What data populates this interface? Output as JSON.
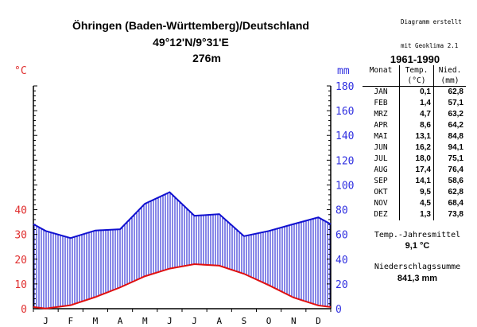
{
  "credit": {
    "line1": "Diagramm erstellt",
    "line2": "mit Geoklima 2.1"
  },
  "header": {
    "title": "Öhringen (Baden-Württemberg)/Deutschland",
    "coords": "49°12'N/9°31'E",
    "altitude": "276m"
  },
  "units": {
    "left": "°C",
    "right": "mm"
  },
  "table": {
    "period": "1961-1990",
    "head_month": "Monat",
    "head_temp": "Temp.",
    "head_temp_unit": "(°C)",
    "head_prec": "Nied.",
    "head_prec_unit": "(mm)",
    "rows": [
      {
        "month": "JAN",
        "temp": "0,1",
        "prec": "62,8"
      },
      {
        "month": "FEB",
        "temp": "1,4",
        "prec": "57,1"
      },
      {
        "month": "MRZ",
        "temp": "4,7",
        "prec": "63,2"
      },
      {
        "month": "APR",
        "temp": "8,6",
        "prec": "64,2"
      },
      {
        "month": "MAI",
        "temp": "13,1",
        "prec": "84,8"
      },
      {
        "month": "JUN",
        "temp": "16,2",
        "prec": "94,1"
      },
      {
        "month": "JUL",
        "temp": "18,0",
        "prec": "75,1"
      },
      {
        "month": "AUG",
        "temp": "17,4",
        "prec": "76,4"
      },
      {
        "month": "SEP",
        "temp": "14,1",
        "prec": "58,6"
      },
      {
        "month": "OKT",
        "temp": "9,5",
        "prec": "62,8"
      },
      {
        "month": "NOV",
        "temp": "4,5",
        "prec": "68,4"
      },
      {
        "month": "DEZ",
        "temp": "1,3",
        "prec": "73,8"
      }
    ]
  },
  "summary": {
    "temp_label": "Temp.-Jahresmittel",
    "temp_value": "9,1 °C",
    "prec_label": "Niederschlagssumme",
    "prec_value": "841,3 mm"
  },
  "chart_data": {
    "type": "line",
    "categories": [
      "J",
      "F",
      "M",
      "A",
      "M",
      "J",
      "J",
      "A",
      "S",
      "O",
      "N",
      "D"
    ],
    "series": [
      {
        "axis": "left",
        "color": "#e01010",
        "values": [
          0.1,
          1.4,
          4.7,
          8.6,
          13.1,
          16.2,
          18.0,
          17.4,
          14.1,
          9.5,
          4.5,
          1.3
        ]
      },
      {
        "axis": "right",
        "color": "#1010d0",
        "values": [
          62.8,
          57.1,
          63.2,
          64.2,
          84.8,
          94.1,
          75.1,
          76.4,
          58.6,
          62.8,
          68.4,
          73.8
        ]
      }
    ],
    "left_ticks": [
      0,
      10,
      20,
      30,
      40
    ],
    "right_ticks": [
      0,
      20,
      40,
      60,
      80,
      100,
      120,
      140,
      160,
      180
    ],
    "ylim_left": [
      0,
      90
    ],
    "ylim_right": [
      0,
      180
    ],
    "fill": "vertical hatch between temperature and precipitation curves",
    "colors": {
      "temperature": "#e01010",
      "precipitation": "#1010d0",
      "left_ticks": "#e03030",
      "right_ticks": "#3030e0"
    }
  }
}
